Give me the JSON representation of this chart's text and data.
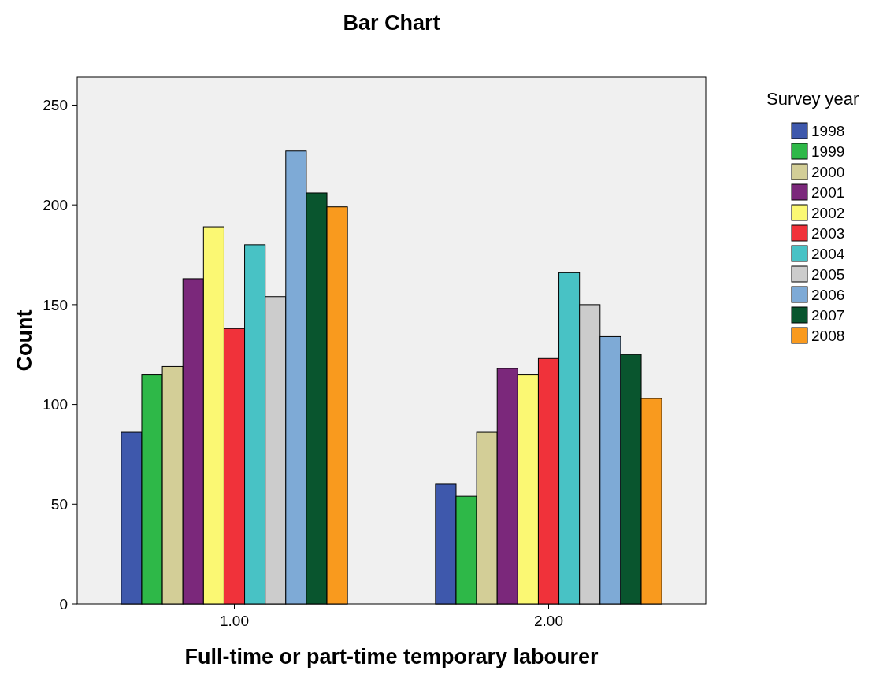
{
  "chart_data": {
    "type": "bar",
    "title": "Bar Chart",
    "xlabel": "Full-time or part-time temporary labourer",
    "ylabel": "Count",
    "legend_title": "Survey year",
    "categories": [
      "1.00",
      "2.00"
    ],
    "series": [
      {
        "name": "1998",
        "color": "#3e58ac",
        "values": [
          86,
          60
        ]
      },
      {
        "name": "1999",
        "color": "#2eb848",
        "values": [
          115,
          54
        ]
      },
      {
        "name": "2000",
        "color": "#d3ce97",
        "values": [
          119,
          86
        ]
      },
      {
        "name": "2001",
        "color": "#7b287b",
        "values": [
          163,
          118
        ]
      },
      {
        "name": "2002",
        "color": "#fbf873",
        "values": [
          189,
          115
        ]
      },
      {
        "name": "2003",
        "color": "#f0323a",
        "values": [
          138,
          123
        ]
      },
      {
        "name": "2004",
        "color": "#48c2c5",
        "values": [
          180,
          166
        ]
      },
      {
        "name": "2005",
        "color": "#cccccc",
        "values": [
          154,
          150
        ]
      },
      {
        "name": "2006",
        "color": "#7eaad6",
        "values": [
          227,
          134
        ]
      },
      {
        "name": "2007",
        "color": "#09552e",
        "values": [
          206,
          125
        ]
      },
      {
        "name": "2008",
        "color": "#f99a1e",
        "values": [
          199,
          103
        ]
      }
    ],
    "ylim": [
      0,
      264
    ],
    "yticks": [
      0,
      50,
      100,
      150,
      200,
      250
    ],
    "grid": false,
    "legend": "right"
  }
}
